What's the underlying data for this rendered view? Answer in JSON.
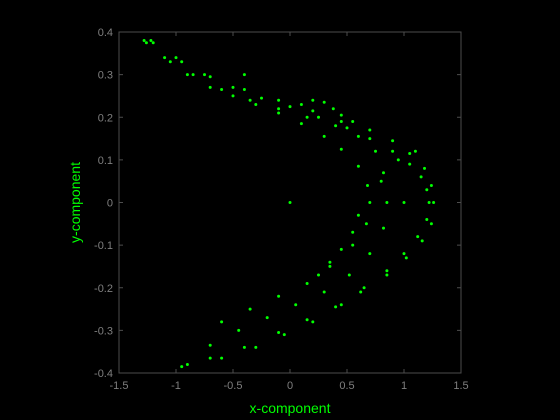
{
  "chart_data": {
    "type": "scatter",
    "title": "",
    "xlabel": "x-component",
    "ylabel": "y-component",
    "xlim": [
      -1.5,
      1.5
    ],
    "ylim": [
      -0.4,
      0.4
    ],
    "xticks": [
      -1.5,
      -1,
      -0.5,
      0,
      0.5,
      1,
      1.5
    ],
    "yticks": [
      -0.4,
      -0.3,
      -0.2,
      -0.1,
      0,
      0.1,
      0.2,
      0.3,
      0.4
    ],
    "xtick_labels": [
      "-1.5",
      "-1",
      "-0.5",
      "0",
      "0.5",
      "1",
      "1.5"
    ],
    "ytick_labels": [
      "-0.4",
      "-0.3",
      "-0.2",
      "-0.1",
      "0",
      "0.1",
      "0.2",
      "0.3",
      "0.4"
    ],
    "grid": false,
    "series": [
      {
        "marker": "dot",
        "points": [
          [
            -1.28,
            0.38
          ],
          [
            -1.1,
            0.34
          ],
          [
            -0.9,
            0.3
          ],
          [
            -0.7,
            0.27
          ],
          [
            -0.5,
            0.25
          ],
          [
            -0.3,
            0.23
          ],
          [
            -0.1,
            0.21
          ],
          [
            0.1,
            0.185
          ],
          [
            0.3,
            0.155
          ],
          [
            0.45,
            0.125
          ],
          [
            0.6,
            0.085
          ],
          [
            0.68,
            0.04
          ],
          [
            0.7,
            0.0
          ],
          [
            0.67,
            -0.05
          ],
          [
            0.55,
            -0.1
          ],
          [
            0.35,
            -0.15
          ],
          [
            0.15,
            -0.19
          ],
          [
            -0.1,
            -0.22
          ],
          [
            -0.35,
            -0.25
          ],
          [
            -0.6,
            -0.28
          ],
          [
            -1.26,
            0.375
          ],
          [
            -1.05,
            0.33
          ],
          [
            -0.85,
            0.3
          ],
          [
            -0.6,
            0.265
          ],
          [
            -0.35,
            0.24
          ],
          [
            -0.1,
            0.22
          ],
          [
            0.15,
            0.2
          ],
          [
            0.4,
            0.18
          ],
          [
            0.6,
            0.155
          ],
          [
            0.75,
            0.12
          ],
          [
            0.82,
            0.07
          ],
          [
            0.85,
            0.0
          ],
          [
            0.82,
            -0.06
          ],
          [
            0.7,
            -0.12
          ],
          [
            0.52,
            -0.17
          ],
          [
            0.3,
            -0.21
          ],
          [
            0.05,
            -0.24
          ],
          [
            -0.2,
            -0.27
          ],
          [
            -0.45,
            -0.3
          ],
          [
            -0.7,
            -0.335
          ],
          [
            -0.95,
            -0.385
          ],
          [
            -1.22,
            0.38
          ],
          [
            -1.0,
            0.34
          ],
          [
            -0.75,
            0.3
          ],
          [
            -0.5,
            0.27
          ],
          [
            -0.25,
            0.245
          ],
          [
            0.0,
            0.225
          ],
          [
            0.25,
            0.2
          ],
          [
            0.5,
            0.175
          ],
          [
            0.7,
            0.15
          ],
          [
            0.9,
            0.12
          ],
          [
            1.05,
            0.09
          ],
          [
            1.15,
            0.06
          ],
          [
            1.2,
            0.03
          ],
          [
            1.22,
            0.0
          ],
          [
            1.2,
            -0.04
          ],
          [
            1.12,
            -0.08
          ],
          [
            1.0,
            -0.12
          ],
          [
            0.85,
            -0.16
          ],
          [
            0.65,
            -0.2
          ],
          [
            0.45,
            -0.24
          ],
          [
            0.2,
            -0.28
          ],
          [
            -0.05,
            -0.31
          ],
          [
            -0.3,
            -0.34
          ],
          [
            -0.6,
            -0.365
          ],
          [
            -0.9,
            -0.38
          ],
          [
            -1.2,
            0.375
          ],
          [
            -0.95,
            0.33
          ],
          [
            -0.7,
            0.295
          ],
          [
            -0.4,
            0.265
          ],
          [
            -0.1,
            0.24
          ],
          [
            0.2,
            0.215
          ],
          [
            0.45,
            0.19
          ],
          [
            0.7,
            0.17
          ],
          [
            0.9,
            0.145
          ],
          [
            1.05,
            0.115
          ],
          [
            1.18,
            0.08
          ],
          [
            1.24,
            0.04
          ],
          [
            1.26,
            0.0
          ],
          [
            1.24,
            -0.05
          ],
          [
            1.16,
            -0.09
          ],
          [
            1.02,
            -0.13
          ],
          [
            0.85,
            -0.17
          ],
          [
            0.62,
            -0.21
          ],
          [
            0.4,
            -0.245
          ],
          [
            0.15,
            -0.275
          ],
          [
            -0.1,
            -0.305
          ],
          [
            -0.4,
            -0.34
          ],
          [
            -0.7,
            -0.365
          ],
          [
            0.1,
            0.23
          ],
          [
            0.2,
            0.24
          ],
          [
            0.3,
            0.235
          ],
          [
            0.38,
            0.22
          ],
          [
            0.45,
            0.205
          ],
          [
            0.55,
            0.19
          ],
          [
            0.25,
            -0.17
          ],
          [
            0.35,
            -0.14
          ],
          [
            0.45,
            -0.11
          ],
          [
            0.55,
            -0.07
          ],
          [
            0.6,
            -0.03
          ],
          [
            0.8,
            0.05
          ],
          [
            0.95,
            0.1
          ],
          [
            1.1,
            0.12
          ],
          [
            0.0,
            0.0
          ],
          [
            1.0,
            0.0
          ],
          [
            -0.4,
            0.3
          ]
        ]
      }
    ],
    "colors": {
      "background": "#000000",
      "axes": "#4d4d4d",
      "data": "#00ff00",
      "labels": "#00ff00",
      "ticks": "#7f7f7f"
    }
  }
}
